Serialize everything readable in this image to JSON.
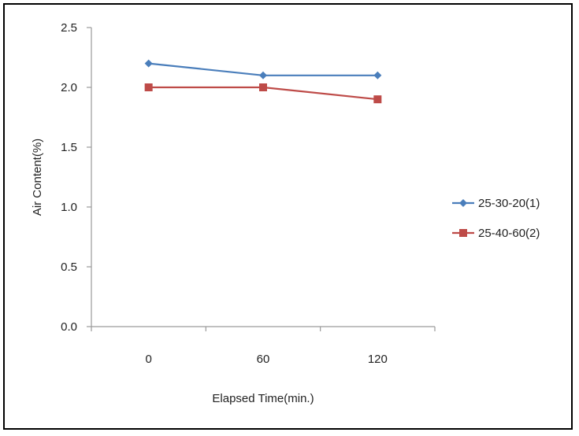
{
  "chart_data": {
    "type": "line",
    "categories": [
      "0",
      "60",
      "120"
    ],
    "xlabel": "Elapsed Time(min.)",
    "ylabel": "Air Content(%)",
    "ylim": [
      0,
      2.5
    ],
    "yticks": [
      "0.0",
      "0.5",
      "1.0",
      "1.5",
      "2.0",
      "2.5"
    ],
    "grid": false,
    "legend_position": "right",
    "series": [
      {
        "name": "25-30-20(1)",
        "values": [
          2.2,
          2.1,
          2.1
        ],
        "color": "#4a7ebb",
        "marker": "diamond"
      },
      {
        "name": "25-40-60(2)",
        "values": [
          2.0,
          2.0,
          1.9
        ],
        "color": "#be4b48",
        "marker": "square"
      }
    ]
  }
}
